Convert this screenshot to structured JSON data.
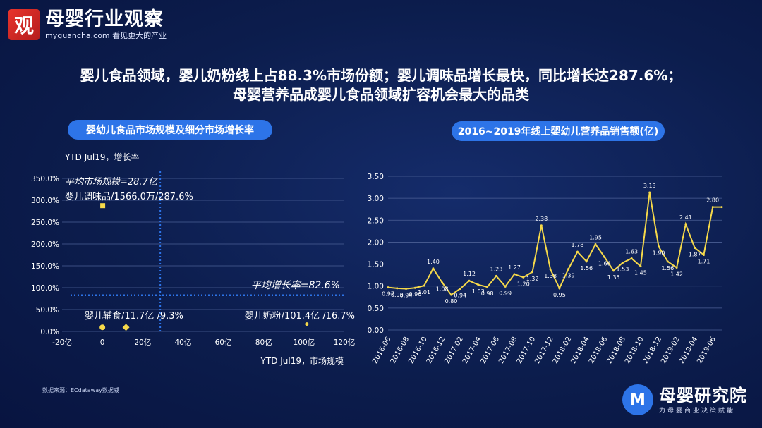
{
  "header": {
    "logo_glyph": "观",
    "logo_name": "母婴行业观察",
    "logo_sub": "myguancha.com 看见更大的产业"
  },
  "headline": {
    "line1": "婴儿食品领域，婴儿奶粉线上占88.3%市场份额；婴儿调味品增长最快，同比增长达287.6%；",
    "line2": "母婴营养品成婴儿食品领域扩容机会最大的品类"
  },
  "footer": {
    "source": "数据来源：ECdataway数据威",
    "brand_glyph": "M",
    "brand_name": "母婴研究院",
    "brand_sub": "为母婴商业决策赋能"
  },
  "chart_data": [
    {
      "type": "scatter",
      "title": "婴幼儿食品市场规模及细分市场增长率",
      "xlabel": "YTD Jul19，市场规模",
      "ylabel": "YTD Jul19，增长率",
      "x_ticks": [
        "-20亿",
        "0",
        "20亿",
        "40亿",
        "60亿",
        "80亿",
        "100亿",
        "120亿"
      ],
      "x_tick_values": [
        -20,
        0,
        20,
        40,
        60,
        80,
        100,
        120
      ],
      "y_ticks": [
        "0.0%",
        "50.0%",
        "100.0%",
        "150.0%",
        "200.0%",
        "250.0%",
        "300.0%",
        "350.0%"
      ],
      "y_tick_values": [
        0,
        50,
        100,
        150,
        200,
        250,
        300,
        350
      ],
      "xlim": [
        -20,
        120
      ],
      "ylim": [
        0,
        350
      ],
      "grid": true,
      "points": [
        {
          "label": "婴儿调味品/1566.0万/287.6%",
          "x": 0.16,
          "y": 287.6,
          "marker": "square",
          "color": "#f6d94a"
        },
        {
          "label": "婴儿辅食/11.7亿 /9.3%",
          "x": 11.7,
          "y": 9.3,
          "marker": "diamond",
          "color": "#f6d94a"
        },
        {
          "label": "",
          "x": 0,
          "y": 9.3,
          "marker": "circle",
          "color": "#f6d94a"
        },
        {
          "label": "婴儿奶粉/101.4亿 /16.7%",
          "x": 101.4,
          "y": 16.7,
          "marker": "circle",
          "color": "#f6d94a"
        }
      ],
      "ref_lines": [
        {
          "axis": "x",
          "value": 28.7,
          "label": "平均市场规模=28.7亿"
        },
        {
          "axis": "y",
          "value": 82.6,
          "label": "平均增长率=82.6%"
        }
      ]
    },
    {
      "type": "line",
      "title": "2016~2019年线上婴幼儿营养品销售额(亿)",
      "xlabel": "",
      "ylabel": "",
      "x_ticks": [
        "2016-06",
        "2016-08",
        "2016-10",
        "2016-12",
        "2017-02",
        "2017-04",
        "2017-06",
        "2017-08",
        "2017-10",
        "2017-12",
        "2018-02",
        "2018-04",
        "2018-06",
        "2018-08",
        "2018-10",
        "2018-12",
        "2019-02",
        "2019-04",
        "2019-06"
      ],
      "y_ticks": [
        "0.00",
        "0.50",
        "1.00",
        "1.50",
        "2.00",
        "2.50",
        "3.00",
        "3.50"
      ],
      "y_tick_values": [
        0,
        0.5,
        1.0,
        1.5,
        2.0,
        2.5,
        3.0,
        3.5
      ],
      "ylim": [
        0,
        3.5
      ],
      "grid": true,
      "series": [
        {
          "color": "#f6d94a",
          "x": [
            "2016-06",
            "2016-07",
            "2016-08",
            "2016-09",
            "2016-10",
            "2016-11",
            "2016-12",
            "2017-01",
            "2017-02",
            "2017-03",
            "2017-04",
            "2017-05",
            "2017-06",
            "2017-07",
            "2017-08",
            "2017-09",
            "2017-10",
            "2017-11",
            "2017-12",
            "2018-01",
            "2018-02",
            "2018-03",
            "2018-04",
            "2018-05",
            "2018-06",
            "2018-07",
            "2018-08",
            "2018-09",
            "2018-10",
            "2018-11",
            "2018-12",
            "2019-01",
            "2019-02",
            "2019-03",
            "2019-04",
            "2019-05",
            "2019-06",
            "2019-07"
          ],
          "values": [
            0.97,
            0.95,
            0.94,
            0.96,
            1.01,
            1.4,
            1.08,
            0.8,
            0.94,
            1.12,
            1.03,
            0.98,
            1.23,
            0.99,
            1.27,
            1.2,
            1.32,
            2.38,
            1.38,
            0.95,
            1.39,
            1.78,
            1.56,
            1.95,
            1.66,
            1.35,
            1.53,
            1.63,
            1.45,
            3.13,
            1.9,
            1.56,
            1.42,
            2.41,
            1.87,
            1.71,
            2.8,
            2.8
          ],
          "labels": [
            "0.97",
            "0.95",
            "0.94",
            "0.96",
            "1.01",
            "1.40",
            "1.08",
            "0.80",
            "0.94",
            "1.12",
            "1.03",
            "0.98",
            "1.23",
            "0.99",
            "1.27",
            "1.20",
            "1.32",
            "2.38",
            "1.38",
            "0.95",
            "1.39",
            "1.78",
            "1.56",
            "1.95",
            "1.66",
            "1.35",
            "1.53",
            "1.63",
            "1.45",
            "3.13",
            "1.90",
            "1.56",
            "1.42",
            "2.41",
            "1.87",
            "1.71",
            "2.80",
            ""
          ]
        }
      ]
    }
  ]
}
